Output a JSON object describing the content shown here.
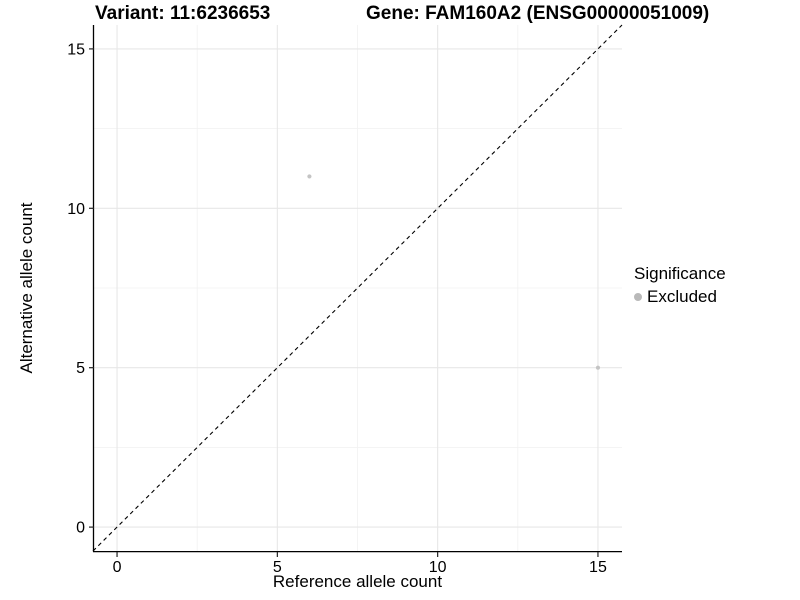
{
  "titles": {
    "left": "Variant: 11:6236653",
    "right": "Gene: FAM160A2 (ENSG00000051009)"
  },
  "chart_data": {
    "type": "scatter",
    "title_left": "Variant: 11:6236653",
    "title_right": "Gene: FAM160A2 (ENSG00000051009)",
    "xlabel": "Reference allele count",
    "ylabel": "Alternative allele count",
    "xlim": [
      -0.75,
      15.75
    ],
    "ylim": [
      -0.75,
      15.75
    ],
    "x_ticks": [
      0,
      5,
      10,
      15
    ],
    "y_ticks": [
      0,
      5,
      10,
      15
    ],
    "x_minor_ticks": [
      2.5,
      7.5,
      12.5
    ],
    "y_minor_ticks": [
      2.5,
      7.5,
      12.5
    ],
    "grid": true,
    "series": [
      {
        "name": "Excluded",
        "color": "#C4C4C4",
        "point_radius": 2.1,
        "points": [
          {
            "x": 6,
            "y": 11
          },
          {
            "x": 15,
            "y": 5
          }
        ]
      }
    ],
    "reference_line": {
      "style": "dashed",
      "color": "#000000",
      "from": {
        "x": -0.75,
        "y": -0.75
      },
      "to": {
        "x": 15.75,
        "y": 15.75
      }
    },
    "legend": {
      "title": "Significance",
      "position": "right",
      "entries": [
        {
          "label": "Excluded",
          "color": "#B9B9B9"
        }
      ]
    }
  },
  "colors": {
    "background": "#FFFFFF",
    "grid_major": "#E7E7E7",
    "grid_minor": "#F1F1F1",
    "axis_line": "#000000",
    "tick_mark": "#222222",
    "tick_label": "#000000"
  }
}
